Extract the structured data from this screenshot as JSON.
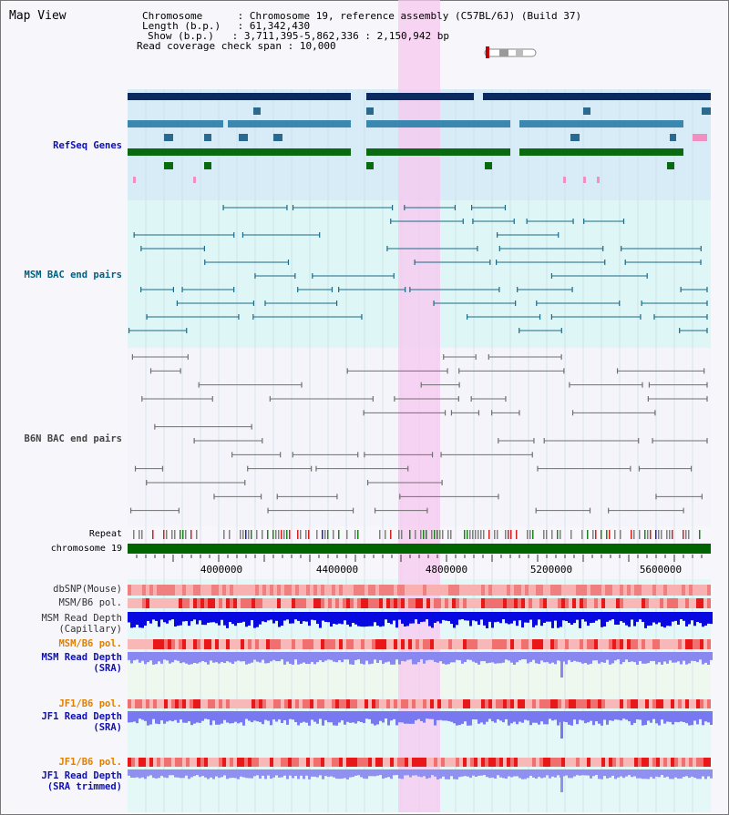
{
  "title": "Map View",
  "info": {
    "chromosome_key": "Chromosome",
    "chromosome_val": "Chromosome 19, reference assembly (C57BL/6J) (Build 37)",
    "length_key": "Length (b.p.)",
    "length_val": "61,342,430",
    "show_key": "Show (b.p.)",
    "show_val": "3,711,395-5,862,336 : 2,150,942 bp",
    "coverage_key": "Read coverage check span",
    "coverage_val": "10,000"
  },
  "tracks": {
    "refseq": "RefSeq Genes",
    "msm_bac": "MSM BAC end pairs",
    "b6n_bac": "B6N BAC end pairs",
    "repeat": "Repeat",
    "chromosome": "chromosome 19",
    "dbsnp": "dbSNP(Mouse)",
    "msm_pol1": "MSM/B6 pol.",
    "msm_depth_cap_1": "MSM Read Depth",
    "msm_depth_cap_2": "(Capillary)",
    "msm_pol2": "MSM/B6 pol.",
    "msm_depth_sra_1": "MSM Read Depth",
    "msm_depth_sra_2": "(SRA)",
    "jf1_pol1": "JF1/B6 pol.",
    "jf1_depth_sra_1": "JF1 Read Depth",
    "jf1_depth_sra_2": "(SRA)",
    "jf1_pol2": "JF1/B6 pol.",
    "jf1_depth_trim_1": "JF1 Read Depth",
    "jf1_depth_trim_2": "(SRA trimmed)"
  },
  "axis": {
    "ticks": [
      "4000000",
      "4400000",
      "4800000",
      "5200000",
      "5600000"
    ]
  },
  "colors": {
    "refseq_label": "#1010b0",
    "msm_label": "#006080",
    "b6n_label": "#444444",
    "pol_label": "#e08000",
    "depth_label": "#1010b0",
    "chrom_bar": "#006400"
  }
}
